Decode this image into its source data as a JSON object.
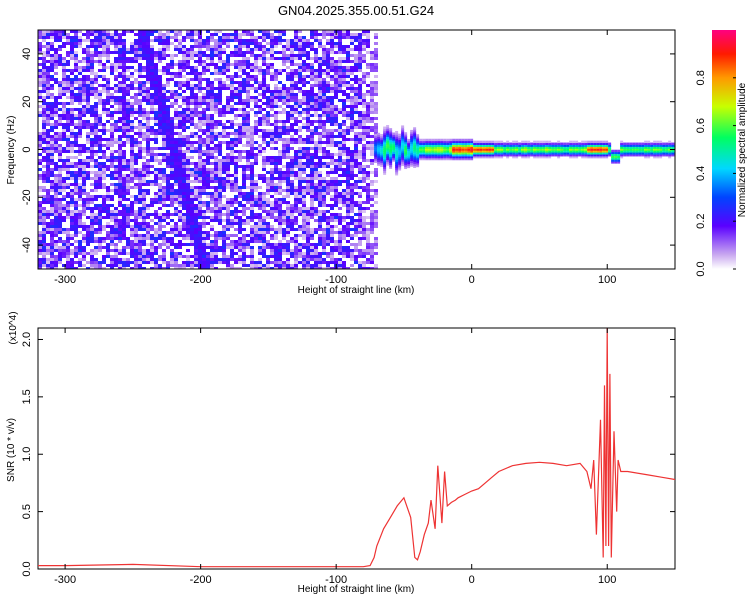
{
  "title": "GN04.2025.355.00.51.G24",
  "chart_data": [
    {
      "type": "heatmap",
      "title": "GN04.2025.355.00.51.G24",
      "xlabel": "Height of straight line (km)",
      "ylabel": "Frequency (Hz)",
      "xlim": [
        -320,
        150
      ],
      "ylim": [
        -50,
        50
      ],
      "xticks": [
        -300,
        -200,
        -100,
        0,
        100
      ],
      "yticks": [
        -40,
        -20,
        0,
        20,
        40
      ],
      "colorbar": {
        "label": "Normalized spectral amplitude",
        "range": [
          0,
          1
        ],
        "ticks": [
          "0.0",
          "0.2",
          "0.4",
          "0.6",
          "0.8"
        ]
      },
      "description_of_content": "Noisy low-amplitude purple speckle across all frequencies for heights below about -70 km; for heights above about -70 km a narrow band near 0 Hz with amplitude rising to about 0.8-1.0 (red) near -10 to 10 km and near 90-100 km; a diagonal darker streak from about (-240, 40) to (-200, -45)."
    },
    {
      "type": "line",
      "xlabel": "Height of straight line (km)",
      "ylabel": "SNR (10 * v/v)",
      "y_multiplier": "(x10^4)",
      "xlim": [
        -320,
        150
      ],
      "ylim": [
        0,
        2.1
      ],
      "xticks": [
        -300,
        -200,
        -100,
        0,
        100
      ],
      "yticks": [
        0.0,
        0.5,
        1.0,
        1.5,
        2.0
      ],
      "color": "#ee3333",
      "series": [
        {
          "x": [
            -320,
            -300,
            -250,
            -200,
            -150,
            -100,
            -80,
            -75,
            -72,
            -70,
            -65,
            -60,
            -55,
            -50,
            -45,
            -42,
            -40,
            -38,
            -35,
            -32,
            -30,
            -27,
            -25,
            -22,
            -20,
            -18,
            -15,
            -12,
            -10,
            -5,
            0,
            5,
            10,
            15,
            20,
            30,
            40,
            50,
            60,
            70,
            80,
            85,
            88,
            90,
            92,
            95,
            97,
            98,
            99,
            100,
            101,
            102,
            103,
            105,
            107,
            108,
            110,
            115,
            120,
            130,
            140,
            150
          ],
          "y": [
            0.03,
            0.03,
            0.04,
            0.02,
            0.02,
            0.02,
            0.02,
            0.03,
            0.1,
            0.2,
            0.35,
            0.45,
            0.55,
            0.62,
            0.45,
            0.1,
            0.08,
            0.15,
            0.3,
            0.4,
            0.6,
            0.35,
            0.9,
            0.4,
            0.85,
            0.55,
            0.58,
            0.6,
            0.62,
            0.65,
            0.68,
            0.7,
            0.75,
            0.8,
            0.85,
            0.9,
            0.92,
            0.93,
            0.92,
            0.9,
            0.92,
            0.85,
            0.7,
            0.95,
            0.3,
            1.3,
            0.1,
            1.6,
            0.2,
            2.1,
            0.2,
            1.7,
            0.1,
            1.2,
            0.5,
            0.95,
            0.85,
            0.85,
            0.84,
            0.82,
            0.8,
            0.78
          ]
        }
      ]
    }
  ]
}
